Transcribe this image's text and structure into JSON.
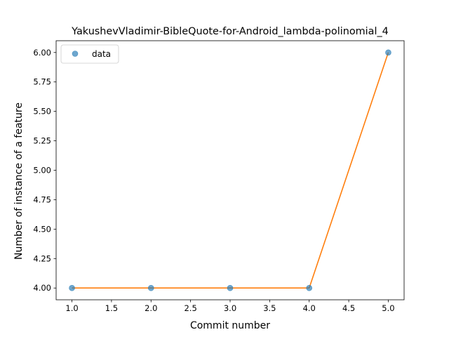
{
  "chart_data": {
    "type": "line",
    "title": "YakushevVladimir-BibleQuote-for-Android_lambda-polinomial_4",
    "xlabel": "Commit number",
    "ylabel": "Number of instance of a feature",
    "xlim": [
      0.8,
      5.2
    ],
    "ylim": [
      3.9,
      6.1
    ],
    "x_ticks": [
      1.0,
      1.5,
      2.0,
      2.5,
      3.0,
      3.5,
      4.0,
      4.5,
      5.0
    ],
    "y_ticks": [
      4.0,
      4.25,
      4.5,
      4.75,
      5.0,
      5.25,
      5.5,
      5.75,
      6.0
    ],
    "tick_decimals": {
      "x": 1,
      "y": 2
    },
    "grid": false,
    "legend": {
      "position": "top-left",
      "entries": [
        "data"
      ]
    },
    "series": [
      {
        "name": "data",
        "style": "markers",
        "color": "#1f77b4",
        "x": [
          1,
          2,
          3,
          4,
          5
        ],
        "y": [
          4,
          4,
          4,
          4,
          6
        ]
      },
      {
        "style": "line",
        "color": "#ff7f0e",
        "x": [
          1,
          2,
          3,
          4,
          5
        ],
        "y": [
          4,
          4,
          4,
          4,
          6
        ]
      }
    ]
  }
}
